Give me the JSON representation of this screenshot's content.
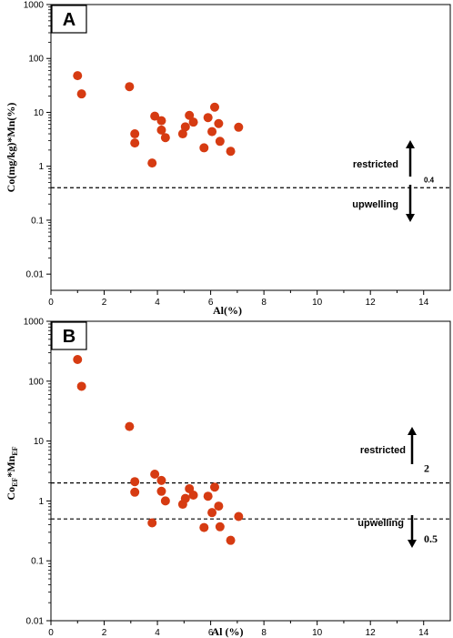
{
  "colors": {
    "point": "#d63b12",
    "axis": "#000000",
    "background": "#ffffff"
  },
  "chart_data": [
    {
      "type": "scatter",
      "panel": "A",
      "xlabel": "Al(%)",
      "ylabel": "Co(mg/kg)*Mn(%)",
      "xlim": [
        0,
        15
      ],
      "ylim": [
        0.005,
        1000
      ],
      "yscale": "log",
      "xticks": [
        0,
        2,
        4,
        6,
        8,
        10,
        12,
        14
      ],
      "yticks": [
        0.01,
        0.1,
        1,
        10,
        100,
        1000
      ],
      "ytick_labels": [
        "0.01",
        "0.1",
        "1",
        "10",
        "100",
        "1000"
      ],
      "grid": false,
      "points": [
        {
          "x": 1.0,
          "y": 48
        },
        {
          "x": 1.15,
          "y": 22
        },
        {
          "x": 2.95,
          "y": 30
        },
        {
          "x": 3.15,
          "y": 4.0
        },
        {
          "x": 3.15,
          "y": 2.7
        },
        {
          "x": 3.8,
          "y": 1.15
        },
        {
          "x": 3.9,
          "y": 8.5
        },
        {
          "x": 4.15,
          "y": 7.0
        },
        {
          "x": 4.15,
          "y": 4.7
        },
        {
          "x": 4.3,
          "y": 3.4
        },
        {
          "x": 4.95,
          "y": 4.0
        },
        {
          "x": 5.05,
          "y": 5.4
        },
        {
          "x": 5.2,
          "y": 8.8
        },
        {
          "x": 5.35,
          "y": 6.6
        },
        {
          "x": 5.75,
          "y": 2.2
        },
        {
          "x": 5.9,
          "y": 8.0
        },
        {
          "x": 6.05,
          "y": 4.4
        },
        {
          "x": 6.15,
          "y": 12.5
        },
        {
          "x": 6.3,
          "y": 6.2
        },
        {
          "x": 6.35,
          "y": 2.9
        },
        {
          "x": 6.75,
          "y": 1.9
        },
        {
          "x": 7.05,
          "y": 5.3
        }
      ],
      "threshold": {
        "y": 0.4,
        "label": "0.4"
      },
      "annotations": {
        "upper": "restricted",
        "lower": "upwelling"
      }
    },
    {
      "type": "scatter",
      "panel": "B",
      "xlabel": "Al (%)",
      "ylabel_main": "Co",
      "ylabel_sub1": "EF",
      "ylabel_mid": "*Mn",
      "ylabel_sub2": "EF",
      "xlim": [
        0,
        15
      ],
      "ylim": [
        0.01,
        1000
      ],
      "yscale": "log",
      "xticks": [
        0,
        2,
        4,
        6,
        8,
        10,
        12,
        14
      ],
      "yticks": [
        0.01,
        0.1,
        1,
        10,
        100,
        1000
      ],
      "ytick_labels": [
        "0.01",
        "0.1",
        "1",
        "10",
        "100",
        "1000"
      ],
      "grid": false,
      "points": [
        {
          "x": 1.0,
          "y": 230
        },
        {
          "x": 1.15,
          "y": 82
        },
        {
          "x": 2.95,
          "y": 17.5
        },
        {
          "x": 3.15,
          "y": 2.1
        },
        {
          "x": 3.15,
          "y": 1.4
        },
        {
          "x": 3.8,
          "y": 0.43
        },
        {
          "x": 3.9,
          "y": 2.8
        },
        {
          "x": 4.15,
          "y": 2.2
        },
        {
          "x": 4.15,
          "y": 1.45
        },
        {
          "x": 4.3,
          "y": 1.0
        },
        {
          "x": 4.95,
          "y": 0.88
        },
        {
          "x": 5.05,
          "y": 1.1
        },
        {
          "x": 5.2,
          "y": 1.6
        },
        {
          "x": 5.35,
          "y": 1.25
        },
        {
          "x": 5.75,
          "y": 0.36
        },
        {
          "x": 5.9,
          "y": 1.2
        },
        {
          "x": 6.05,
          "y": 0.64
        },
        {
          "x": 6.15,
          "y": 1.7
        },
        {
          "x": 6.3,
          "y": 0.82
        },
        {
          "x": 6.35,
          "y": 0.37
        },
        {
          "x": 6.75,
          "y": 0.22
        },
        {
          "x": 7.05,
          "y": 0.55
        }
      ],
      "thresholds": [
        {
          "y": 2,
          "label": "2"
        },
        {
          "y": 0.5,
          "label": "0.5"
        }
      ],
      "annotations": {
        "upper": "restricted",
        "lower": "upwelling"
      }
    }
  ]
}
